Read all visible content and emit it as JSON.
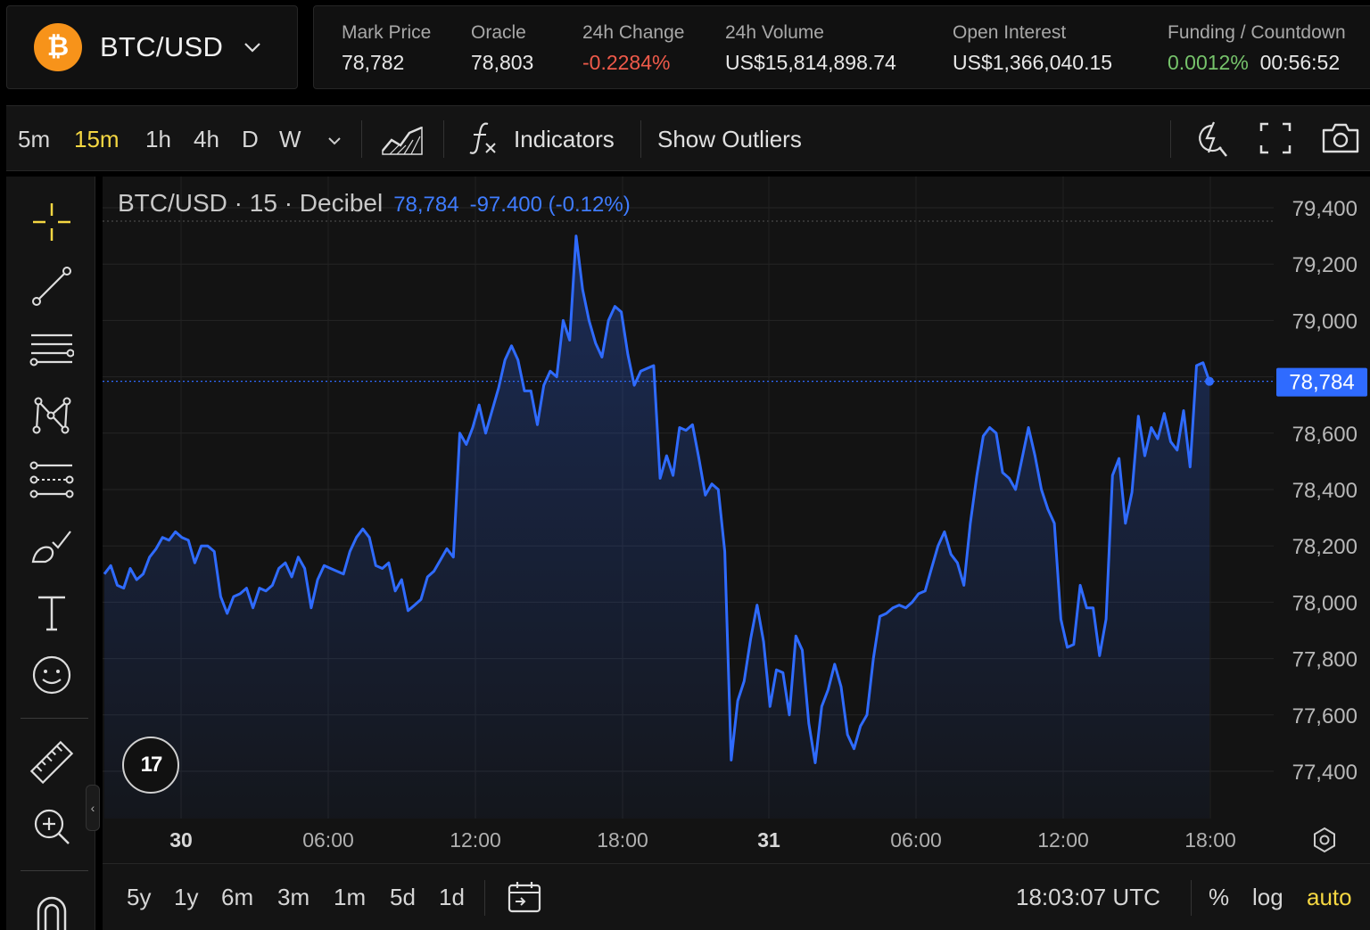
{
  "market": {
    "pair": "BTC/USD",
    "coin_glyph": "₿",
    "coin_color": "#f7931a"
  },
  "stats": [
    {
      "label": "Mark Price",
      "value": "78,782",
      "tone": "neutral"
    },
    {
      "label": "Oracle",
      "value": "78,803",
      "tone": "neutral"
    },
    {
      "label": "24h Change",
      "value": "-0.2284%",
      "tone": "negative"
    },
    {
      "label": "24h Volume",
      "value": "US$15,814,898.74",
      "tone": "neutral"
    },
    {
      "label": "Open Interest",
      "value": "US$1,366,040.15",
      "tone": "neutral"
    }
  ],
  "funding": {
    "label": "Funding / Countdown",
    "rate": "0.0012%",
    "countdown": "00:56:52"
  },
  "toolbar": {
    "timeframes": [
      "5m",
      "15m",
      "1h",
      "4h",
      "D",
      "W"
    ],
    "active_timeframe": "15m",
    "indicators_label": "Indicators",
    "outliers_label": "Show Outliers"
  },
  "legend": {
    "title": "BTC/USD · 15 · Decibel",
    "last": "78,784",
    "change": "-97.400 (-0.12%)"
  },
  "chart_data": {
    "type": "area",
    "ylim": [
      77300,
      79500
    ],
    "y_ticks": [
      79400,
      79200,
      79000,
      78800,
      78600,
      78400,
      78200,
      78000,
      77800,
      77600,
      77400
    ],
    "y_tick_labels": [
      "79,400",
      "79,200",
      "79,000",
      "",
      "78,600",
      "78,400",
      "78,200",
      "78,000",
      "77,800",
      "77,600",
      "77,400"
    ],
    "x_ticks": [
      "30",
      "06:00",
      "12:00",
      "18:00",
      "31",
      "06:00",
      "12:00",
      "18:00"
    ],
    "x_tick_bold": [
      true,
      false,
      false,
      false,
      true,
      false,
      false,
      false
    ],
    "last_price_label": "78,784",
    "last_price": 78784,
    "line_color": "#2f6bff",
    "series": [
      {
        "values": [
          78100,
          78130,
          78060,
          78050,
          78120,
          78080,
          78100,
          78160,
          78190,
          78230,
          78220,
          78250,
          78230,
          78220,
          78140,
          78200,
          78200,
          78180,
          78020,
          77960,
          78020,
          78030,
          78050,
          77980,
          78050,
          78040,
          78060,
          78120,
          78140,
          78090,
          78160,
          78120,
          77980,
          78080,
          78130,
          78120,
          78110,
          78100,
          78180,
          78230,
          78260,
          78230,
          78130,
          78120,
          78140,
          78040,
          78080,
          77970,
          77990,
          78010,
          78090,
          78110,
          78150,
          78190,
          78160,
          78600,
          78560,
          78620,
          78700,
          78600,
          78680,
          78760,
          78860,
          78910,
          78860,
          78750,
          78750,
          78630,
          78770,
          78820,
          78800,
          79000,
          78930,
          79300,
          79110,
          79000,
          78920,
          78870,
          79000,
          79050,
          79030,
          78880,
          78770,
          78820,
          78830,
          78840,
          78440,
          78520,
          78450,
          78620,
          78610,
          78630,
          78510,
          78380,
          78420,
          78400,
          78180,
          77440,
          77650,
          77720,
          77870,
          77990,
          77860,
          77630,
          77760,
          77750,
          77600,
          77880,
          77830,
          77570,
          77430,
          77630,
          77690,
          77780,
          77700,
          77530,
          77480,
          77560,
          77600,
          77800,
          77950,
          77960,
          77980,
          77990,
          77980,
          78000,
          78030,
          78040,
          78120,
          78200,
          78250,
          78170,
          78140,
          78060,
          78280,
          78450,
          78590,
          78620,
          78600,
          78460,
          78440,
          78400,
          78510,
          78620,
          78520,
          78400,
          78330,
          78280,
          77940,
          77840,
          77850,
          78060,
          77980,
          77980,
          77810,
          77940,
          78450,
          78510,
          78280,
          78390,
          78660,
          78520,
          78620,
          78580,
          78670,
          78570,
          78540,
          78680,
          78480,
          78840,
          78850,
          78784
        ]
      }
    ]
  },
  "bottom": {
    "ranges": [
      "5y",
      "1y",
      "6m",
      "3m",
      "1m",
      "5d",
      "1d"
    ],
    "clock": "18:03:07 UTC",
    "percent_label": "%",
    "log_label": "log",
    "auto_label": "auto"
  },
  "rail": {
    "icons": [
      "crosshair-icon",
      "trend-line-icon",
      "fib-lines-icon",
      "pattern-icon",
      "prediction-icon",
      "brush-icon",
      "text-icon",
      "emoji-icon",
      "ruler-icon",
      "zoom-in-icon",
      "magnet-icon"
    ],
    "collapse_glyph": "‹"
  },
  "logo_text": "17"
}
